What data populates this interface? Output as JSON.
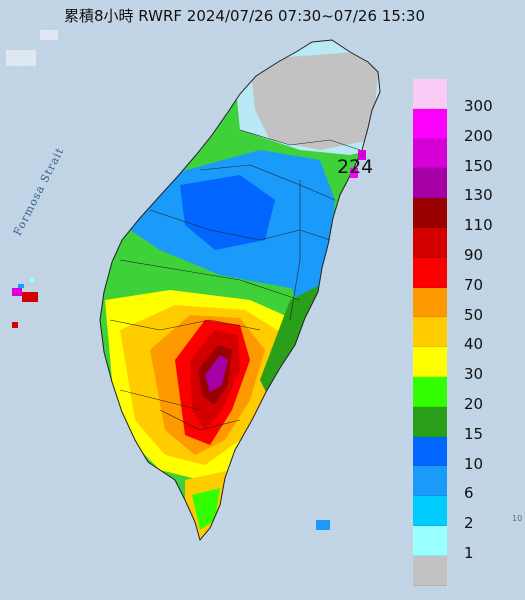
{
  "title": "累積8小時 RWRF 2024/07/26 07:30~07/26 15:30",
  "strait_label": "Formosa Strait",
  "max_value_label": "224",
  "legend": {
    "levels": [
      {
        "label": "300",
        "color": "#fccbf5"
      },
      {
        "label": "200",
        "color": "#fb00fb"
      },
      {
        "label": "150",
        "color": "#d600d6"
      },
      {
        "label": "130",
        "color": "#a500a5"
      },
      {
        "label": "110",
        "color": "#9b0000"
      },
      {
        "label": "90",
        "color": "#d40000"
      },
      {
        "label": "70",
        "color": "#fc0000"
      },
      {
        "label": "50",
        "color": "#ff9900"
      },
      {
        "label": "40",
        "color": "#ffcc00"
      },
      {
        "label": "30",
        "color": "#ffff00"
      },
      {
        "label": "20",
        "color": "#33ff00"
      },
      {
        "label": "15",
        "color": "#2a9f1a"
      },
      {
        "label": "10",
        "color": "#0066ff"
      },
      {
        "label": "6",
        "color": "#1a9bf9"
      },
      {
        "label": "2",
        "color": "#00ccff"
      },
      {
        "label": "1",
        "color": "#99ffff"
      },
      {
        "label": "",
        "color": "#c2c2c2"
      }
    ]
  },
  "edge_label": "10"
}
